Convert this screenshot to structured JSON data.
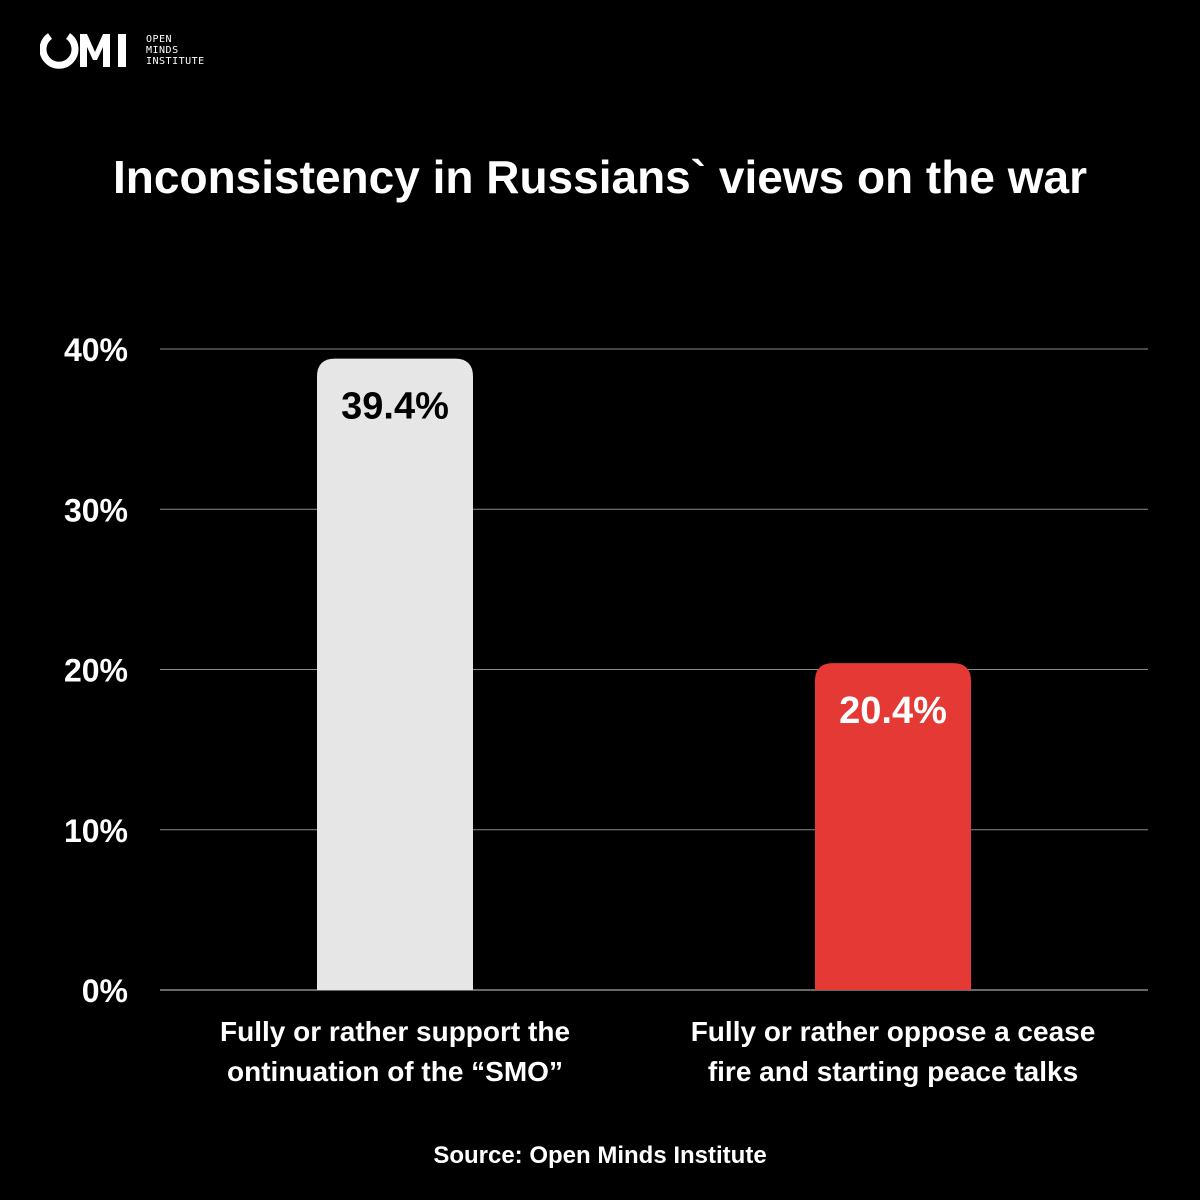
{
  "brand": {
    "mark": "OMI",
    "name_lines": [
      "OPEN",
      "MINDS",
      "INSTITUTE"
    ]
  },
  "source": "Source: Open Minds Institute",
  "colors": {
    "background": "#000000",
    "text": "#ffffff",
    "grid": "#8a8a8a",
    "bar_support": "#e6e6e6",
    "bar_oppose": "#e53935",
    "label_on_light": "#000000",
    "label_on_red": "#ffffff"
  },
  "chart_data": {
    "type": "bar",
    "title": "Inconsistency in Russians` views on the war",
    "categories": [
      [
        "Fully or rather support the",
        "ontinuation of the “SMO”"
      ],
      [
        "Fully or rather oppose a cease",
        "fire and starting peace talks"
      ]
    ],
    "values": [
      39.4,
      20.4
    ],
    "value_labels": [
      "39.4%",
      "20.4%"
    ],
    "bar_colors": [
      "#e6e6e6",
      "#e53935"
    ],
    "ylim": [
      0,
      40
    ],
    "yticks": [
      0,
      10,
      20,
      30,
      40
    ],
    "ytick_labels": [
      "0%",
      "10%",
      "20%",
      "30%",
      "40%"
    ],
    "grid": true,
    "xlabel": "",
    "ylabel": ""
  }
}
